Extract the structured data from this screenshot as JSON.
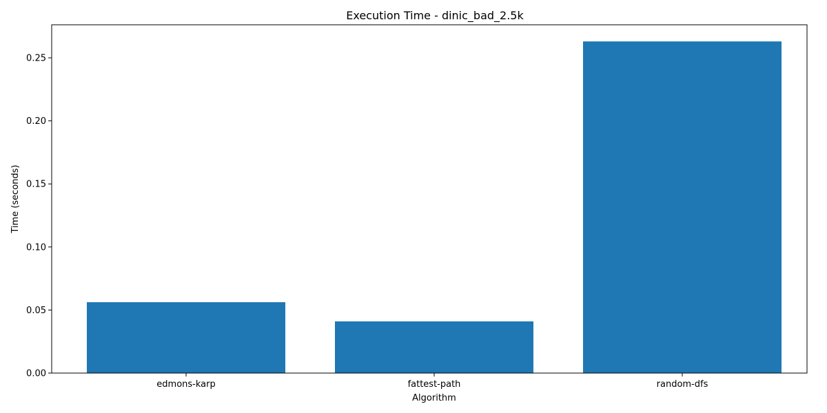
{
  "chart_data": {
    "type": "bar",
    "title": "Execution Time - dinic_bad_2.5k",
    "xlabel": "Algorithm",
    "ylabel": "Time (seconds)",
    "categories": [
      "edmons-karp",
      "fattest-path",
      "random-dfs"
    ],
    "values": [
      0.0562,
      0.041,
      0.263
    ],
    "ylim": [
      0,
      0.2762
    ],
    "yticks": [
      0.0,
      0.05,
      0.1,
      0.15,
      0.2,
      0.25
    ],
    "ytick_labels": [
      "0.00",
      "0.05",
      "0.10",
      "0.15",
      "0.20",
      "0.25"
    ],
    "bar_color": "#1f77b4",
    "grid": false,
    "legend": "none"
  }
}
